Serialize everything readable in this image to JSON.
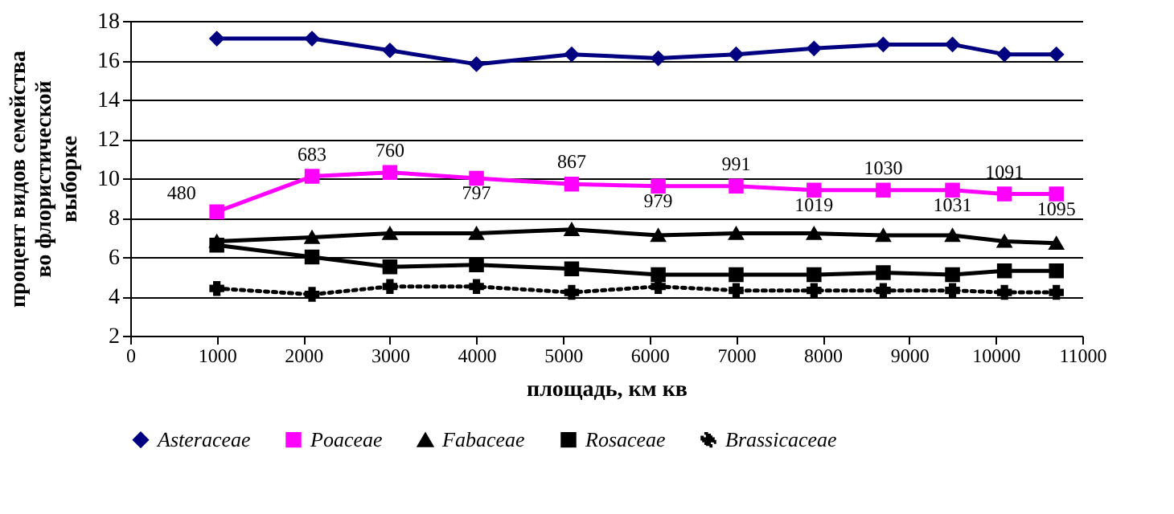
{
  "chart_data": {
    "type": "line",
    "xlabel": "площадь, км кв",
    "ylabel": "процент видов семейства во флористической выборке",
    "x": [
      1000,
      2100,
      3000,
      4000,
      5100,
      6100,
      7000,
      7900,
      8700,
      9500,
      10100,
      10700
    ],
    "xlim": [
      0,
      11000
    ],
    "xticks": [
      0,
      1000,
      2000,
      3000,
      4000,
      5000,
      6000,
      7000,
      8000,
      9000,
      10000,
      11000
    ],
    "ylim": [
      2,
      18
    ],
    "yticks": [
      2,
      4,
      6,
      8,
      10,
      12,
      14,
      16,
      18
    ],
    "grid": "y",
    "legend": "bottom",
    "series": [
      {
        "name": "Asteraceae",
        "color": "#000080",
        "marker": "diamond",
        "line_style": "solid",
        "values": [
          17.1,
          17.1,
          16.5,
          15.8,
          16.3,
          16.1,
          16.3,
          16.6,
          16.8,
          16.8,
          16.3,
          16.3
        ]
      },
      {
        "name": "Poaceae",
        "color": "#ff00ff",
        "marker": "square",
        "line_style": "solid",
        "values": [
          8.3,
          10.1,
          10.3,
          10.0,
          9.7,
          9.6,
          9.6,
          9.4,
          9.4,
          9.4,
          9.2,
          9.2
        ]
      },
      {
        "name": "Fabaceae",
        "color": "#000000",
        "marker": "triangle",
        "line_style": "solid",
        "values": [
          6.8,
          7.0,
          7.2,
          7.2,
          7.4,
          7.1,
          7.2,
          7.2,
          7.1,
          7.1,
          6.8,
          6.7
        ]
      },
      {
        "name": "Rosaceae",
        "color": "#000000",
        "marker": "square",
        "line_style": "solid",
        "values": [
          6.6,
          6.0,
          5.5,
          5.6,
          5.4,
          5.1,
          5.1,
          5.1,
          5.2,
          5.1,
          5.3,
          5.3
        ]
      },
      {
        "name": "Brassicaceae",
        "color": "#000000",
        "marker": "cross",
        "line_style": "dotted",
        "values": [
          4.4,
          4.1,
          4.5,
          4.5,
          4.2,
          4.5,
          4.3,
          4.3,
          4.3,
          4.3,
          4.2,
          4.2
        ]
      }
    ],
    "annotations": [
      {
        "text": "480",
        "x": 1000,
        "y": 8.3
      },
      {
        "text": "683",
        "x": 2100,
        "y": 10.1
      },
      {
        "text": "760",
        "x": 3000,
        "y": 10.3
      },
      {
        "text": "797",
        "x": 4000,
        "y": 10.0
      },
      {
        "text": "867",
        "x": 5100,
        "y": 9.7
      },
      {
        "text": "979",
        "x": 6100,
        "y": 9.6
      },
      {
        "text": "991",
        "x": 7000,
        "y": 9.6
      },
      {
        "text": "1019",
        "x": 7900,
        "y": 9.4
      },
      {
        "text": "1030",
        "x": 8700,
        "y": 9.4
      },
      {
        "text": "1031",
        "x": 9500,
        "y": 9.4
      },
      {
        "text": "1091",
        "x": 10100,
        "y": 9.2
      },
      {
        "text": "1095",
        "x": 10700,
        "y": 9.2
      }
    ]
  }
}
